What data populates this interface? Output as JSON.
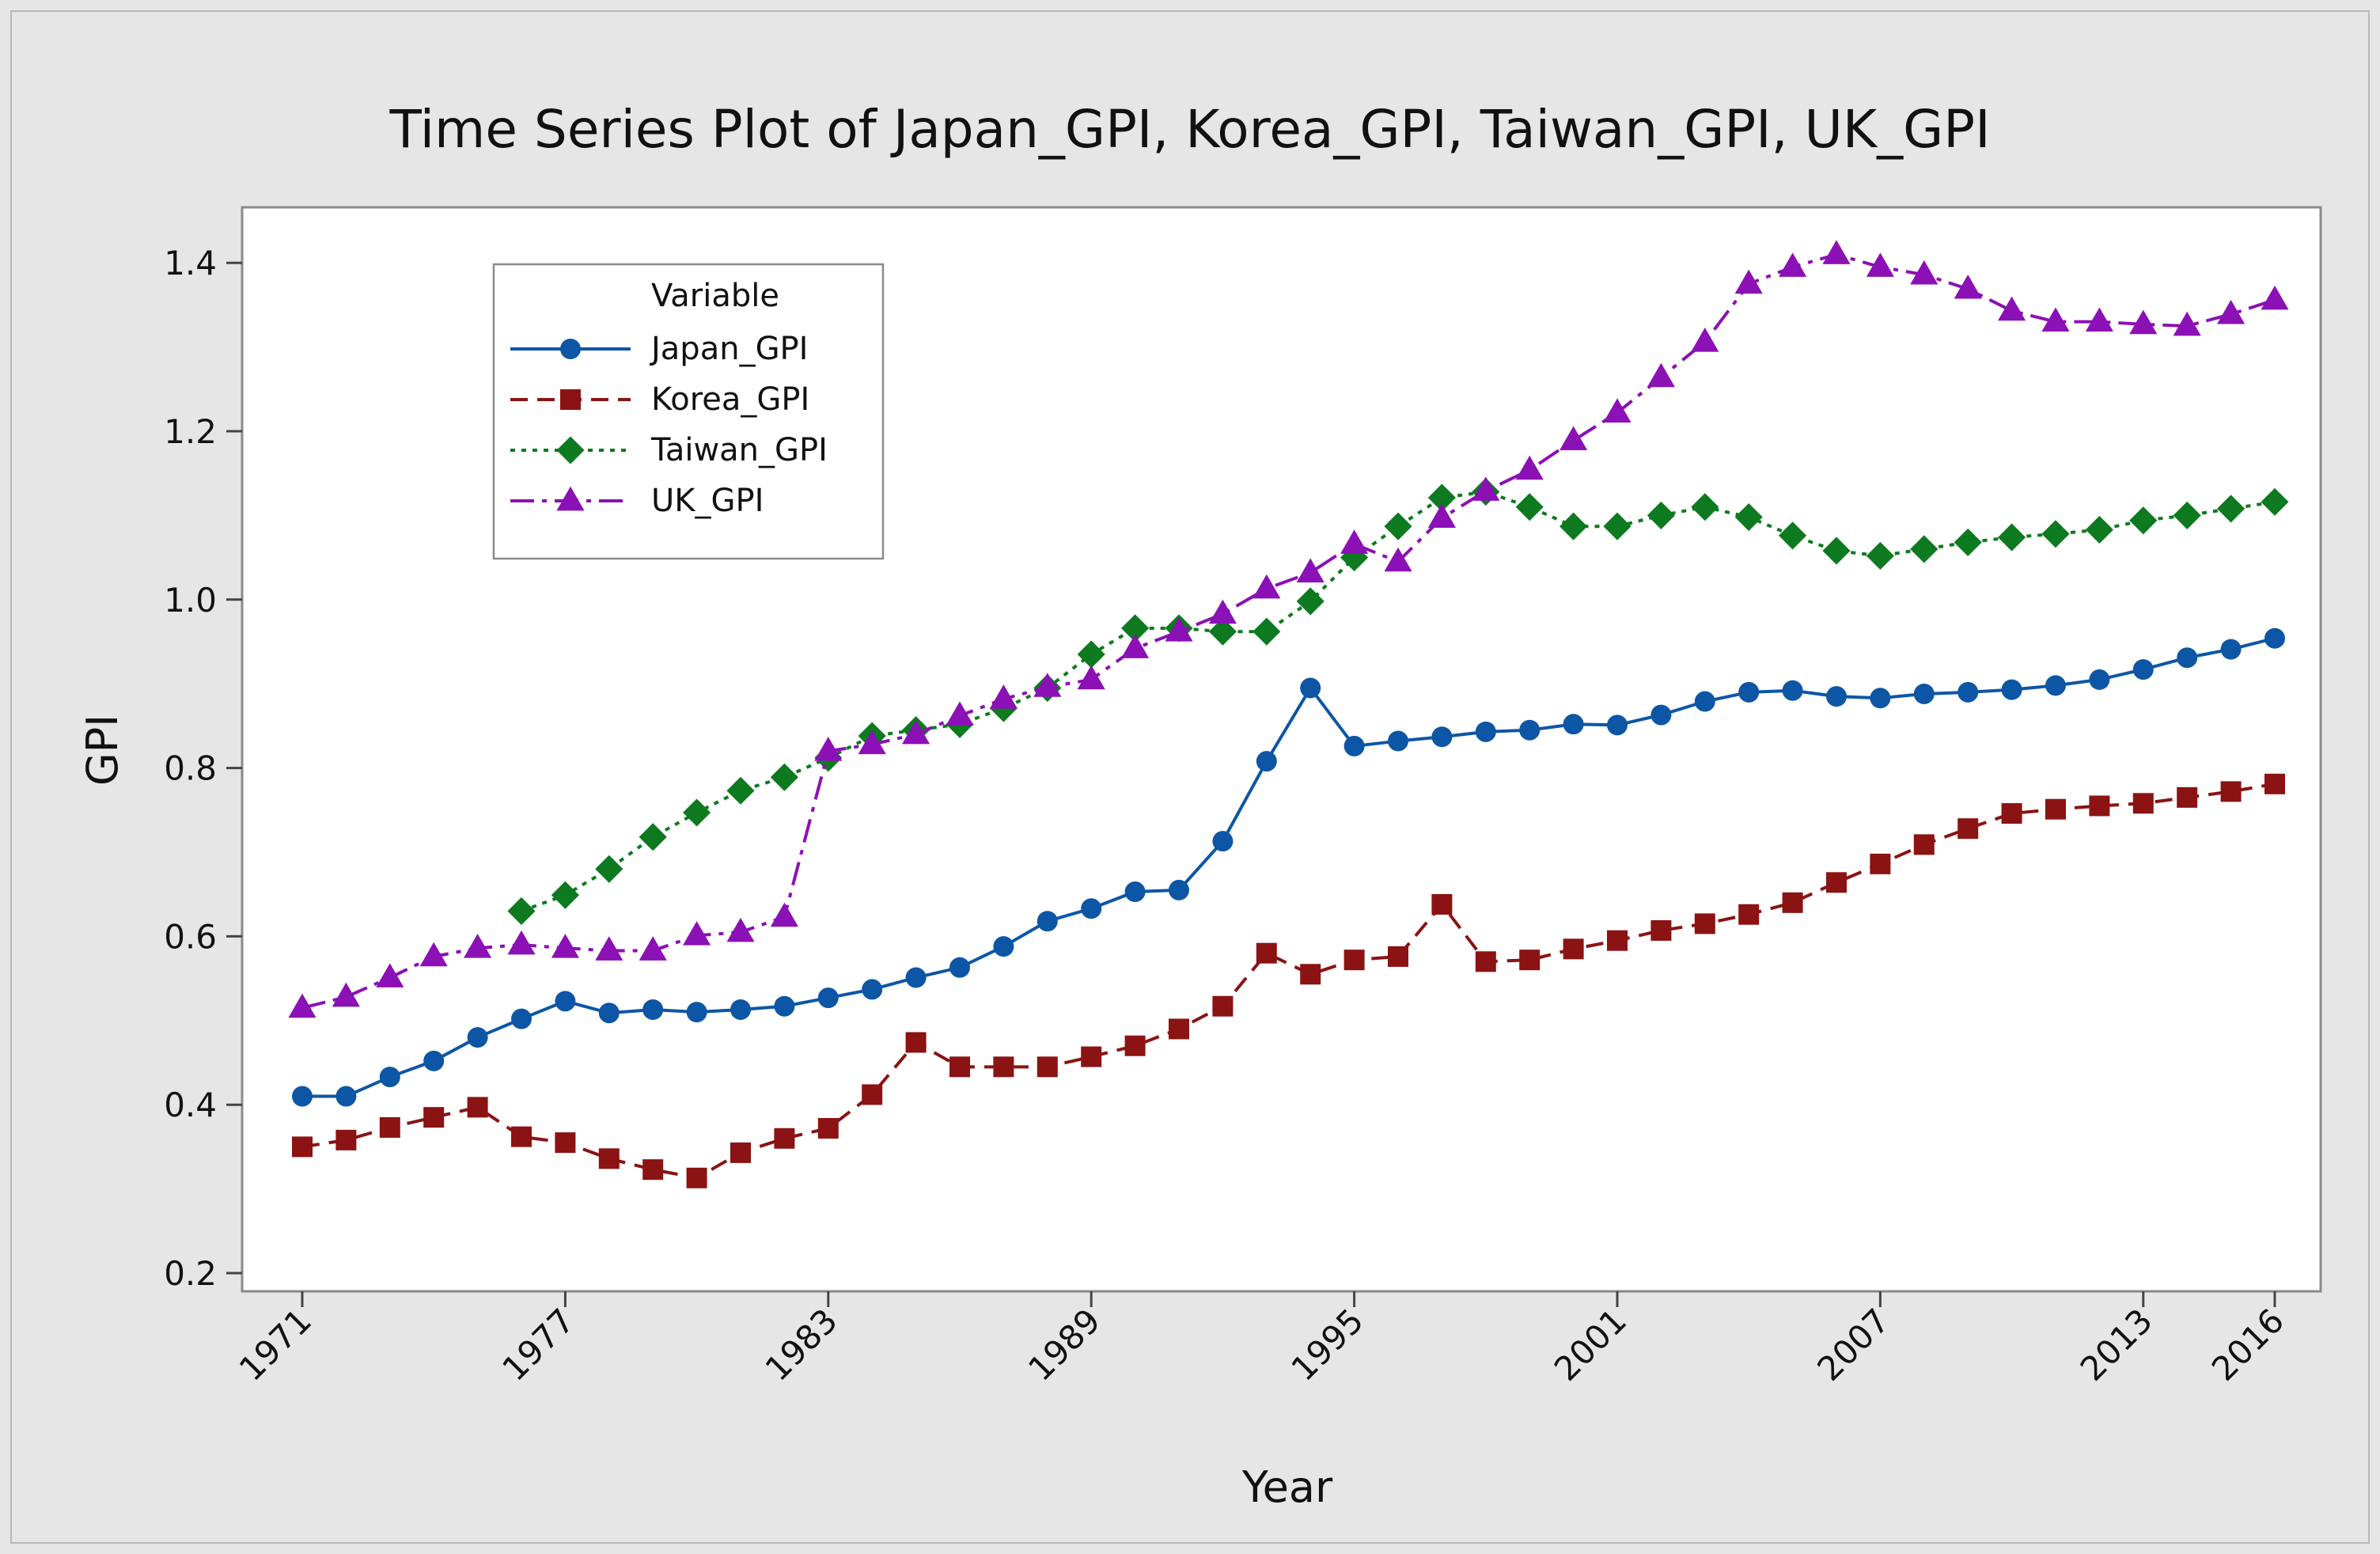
{
  "chart_data": {
    "type": "line",
    "title": "Time Series Plot of Japan_GPI, Korea_GPI, Taiwan_GPI, UK_GPI",
    "xlabel": "Year",
    "ylabel": "GPI",
    "xlim": [
      1971,
      2016
    ],
    "ylim": [
      0.2,
      1.45
    ],
    "x_ticks": [
      1971,
      1977,
      1983,
      1989,
      1995,
      2001,
      2007,
      2013,
      2016
    ],
    "x_tick_labels": [
      "1971",
      "1977",
      "1983",
      "1989",
      "1995",
      "2001",
      "2007",
      "2013",
      "2016"
    ],
    "y_ticks": [
      0.2,
      0.4,
      0.6,
      0.8,
      1.0,
      1.2,
      1.4
    ],
    "y_tick_labels": [
      "0.2",
      "0.4",
      "0.6",
      "0.8",
      "1.0",
      "1.2",
      "1.4"
    ],
    "legend": {
      "title": "Variable",
      "position": "top-left"
    },
    "series": [
      {
        "name": "Japan_GPI",
        "color": "#0d56a6",
        "marker": "circle",
        "line": "solid",
        "x": [
          1971,
          1972,
          1973,
          1974,
          1975,
          1976,
          1977,
          1978,
          1979,
          1980,
          1981,
          1982,
          1983,
          1984,
          1985,
          1986,
          1987,
          1988,
          1989,
          1990,
          1991,
          1992,
          1993,
          1994,
          1995,
          1996,
          1997,
          1998,
          1999,
          2000,
          2001,
          2002,
          2003,
          2004,
          2005,
          2006,
          2007,
          2008,
          2009,
          2010,
          2011,
          2012,
          2013,
          2014,
          2015,
          2016
        ],
        "values": [
          0.41,
          0.41,
          0.433,
          0.452,
          0.48,
          0.502,
          0.523,
          0.509,
          0.513,
          0.51,
          0.513,
          0.517,
          0.527,
          0.537,
          0.551,
          0.563,
          0.588,
          0.618,
          0.633,
          0.653,
          0.655,
          0.713,
          0.808,
          0.895,
          0.826,
          0.832,
          0.837,
          0.843,
          0.845,
          0.852,
          0.851,
          0.863,
          0.879,
          0.89,
          0.892,
          0.885,
          0.883,
          0.888,
          0.89,
          0.893,
          0.898,
          0.905,
          0.917,
          0.931,
          0.941,
          0.954
        ]
      },
      {
        "name": "Korea_GPI",
        "color": "#8b1313",
        "marker": "square",
        "line": "dashed",
        "x": [
          1971,
          1972,
          1973,
          1974,
          1975,
          1976,
          1977,
          1978,
          1979,
          1980,
          1981,
          1982,
          1983,
          1984,
          1985,
          1986,
          1987,
          1988,
          1989,
          1990,
          1991,
          1992,
          1993,
          1994,
          1995,
          1996,
          1997,
          1998,
          1999,
          2000,
          2001,
          2002,
          2003,
          2004,
          2005,
          2006,
          2007,
          2008,
          2009,
          2010,
          2011,
          2012,
          2013,
          2014,
          2015,
          2016
        ],
        "values": [
          0.35,
          0.358,
          0.373,
          0.385,
          0.397,
          0.362,
          0.355,
          0.336,
          0.323,
          0.313,
          0.343,
          0.36,
          0.372,
          0.412,
          0.474,
          0.445,
          0.445,
          0.445,
          0.457,
          0.47,
          0.49,
          0.517,
          0.58,
          0.555,
          0.572,
          0.576,
          0.638,
          0.57,
          0.572,
          0.585,
          0.595,
          0.607,
          0.615,
          0.626,
          0.64,
          0.664,
          0.686,
          0.709,
          0.728,
          0.746,
          0.751,
          0.755,
          0.758,
          0.765,
          0.772,
          0.781
        ]
      },
      {
        "name": "Taiwan_GPI",
        "color": "#0d7a1f",
        "marker": "diamond",
        "line": "dotted",
        "x": [
          1976,
          1977,
          1978,
          1979,
          1980,
          1981,
          1982,
          1983,
          1984,
          1985,
          1986,
          1987,
          1988,
          1989,
          1990,
          1991,
          1992,
          1993,
          1994,
          1995,
          1996,
          1997,
          1998,
          1999,
          2000,
          2001,
          2002,
          2003,
          2004,
          2005,
          2006,
          2007,
          2008,
          2009,
          2010,
          2011,
          2012,
          2013,
          2014,
          2015,
          2016
        ],
        "values": [
          0.63,
          0.649,
          0.68,
          0.718,
          0.747,
          0.773,
          0.789,
          0.812,
          0.838,
          0.845,
          0.852,
          0.871,
          0.895,
          0.935,
          0.966,
          0.966,
          0.962,
          0.962,
          0.998,
          1.05,
          1.087,
          1.121,
          1.128,
          1.11,
          1.087,
          1.087,
          1.1,
          1.11,
          1.098,
          1.076,
          1.058,
          1.052,
          1.06,
          1.068,
          1.074,
          1.078,
          1.083,
          1.094,
          1.1,
          1.108,
          1.116
        ]
      },
      {
        "name": "UK_GPI",
        "color": "#8b10b5",
        "marker": "triangle",
        "line": "dashdot",
        "x": [
          1971,
          1972,
          1973,
          1974,
          1975,
          1976,
          1977,
          1978,
          1979,
          1980,
          1981,
          1982,
          1983,
          1984,
          1985,
          1986,
          1987,
          1988,
          1989,
          1990,
          1991,
          1992,
          1993,
          1994,
          1995,
          1996,
          1997,
          1998,
          1999,
          2000,
          2001,
          2002,
          2003,
          2004,
          2005,
          2006,
          2007,
          2008,
          2009,
          2010,
          2011,
          2012,
          2013,
          2014,
          2015,
          2016
        ],
        "values": [
          0.515,
          0.528,
          0.551,
          0.576,
          0.586,
          0.59,
          0.586,
          0.583,
          0.583,
          0.601,
          0.605,
          0.623,
          0.82,
          0.828,
          0.84,
          0.862,
          0.882,
          0.896,
          0.905,
          0.942,
          0.962,
          0.983,
          1.013,
          1.032,
          1.066,
          1.045,
          1.097,
          1.129,
          1.154,
          1.189,
          1.222,
          1.264,
          1.306,
          1.375,
          1.395,
          1.41,
          1.395,
          1.386,
          1.369,
          1.343,
          1.33,
          1.33,
          1.327,
          1.325,
          1.339,
          1.356
        ]
      }
    ]
  }
}
